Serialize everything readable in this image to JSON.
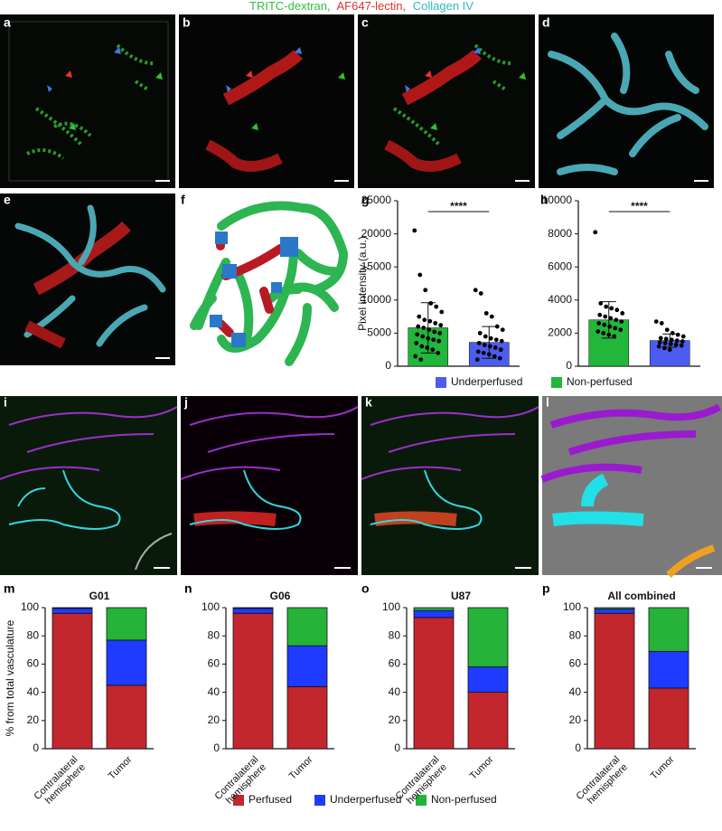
{
  "header": [
    "TRITC-dextran,",
    "AF647-lectin,",
    "Collagen IV"
  ],
  "panel_labels": [
    "a",
    "b",
    "c",
    "d",
    "e",
    "f",
    "g",
    "h",
    "i",
    "j",
    "k",
    "l",
    "m",
    "n",
    "o",
    "p"
  ],
  "chart_data": [
    {
      "type": "bar",
      "ylabel": "Pixel intensity (a.u.)",
      "ylim": [
        0,
        25000
      ],
      "yticks": [
        0,
        5000,
        10000,
        15000,
        20000,
        25000
      ],
      "significance": "****",
      "series": [
        {
          "name": "Non-perfused",
          "color": "#22b63a",
          "values": [
            5800
          ],
          "errors": [
            3800
          ],
          "points": [
            20500,
            13800,
            11500,
            9500,
            9000,
            8200,
            7500,
            7000,
            6800,
            6500,
            6200,
            6000,
            5800,
            5500,
            5200,
            5000,
            4800,
            4500,
            4200,
            4000,
            3800,
            3500,
            3000,
            2800,
            2500,
            2000,
            1500,
            1000
          ]
        },
        {
          "name": "Underperfused",
          "color": "#4d5cf0",
          "values": [
            3600
          ],
          "errors": [
            2400
          ],
          "points": [
            11500,
            11000,
            8000,
            7500,
            6000,
            5500,
            5000,
            4500,
            4200,
            4000,
            3800,
            3500,
            3200,
            3000,
            2800,
            2500,
            2200,
            2000,
            1800,
            1500,
            1200,
            1000
          ]
        }
      ]
    },
    {
      "type": "bar",
      "ylim": [
        0,
        10000
      ],
      "yticks": [
        0,
        2000,
        4000,
        6000,
        8000,
        10000
      ],
      "significance": "****",
      "series": [
        {
          "color": "#22b63a",
          "values": [
            2800
          ],
          "errors": [
            1100
          ],
          "points": [
            8100,
            3800,
            3600,
            3500,
            3400,
            3200,
            3100,
            3000,
            2900,
            2800,
            2700,
            2600,
            2500,
            2400,
            2300,
            2200,
            2100,
            2000,
            1900,
            1800
          ]
        },
        {
          "color": "#4d5cf0",
          "values": [
            1550
          ],
          "errors": [
            400
          ],
          "points": [
            2700,
            2600,
            2200,
            2000,
            1900,
            1800,
            1700,
            1650,
            1600,
            1550,
            1500,
            1450,
            1400,
            1350,
            1300,
            1250,
            1200,
            1100,
            1000
          ]
        }
      ]
    },
    {
      "type": "stacked_bar",
      "title": "G01",
      "ylabel": "% from total vasculature",
      "categories": [
        "Contralateral hemisphere",
        "Tumor"
      ],
      "ylim": [
        0,
        100
      ],
      "yticks": [
        0,
        20,
        40,
        60,
        80,
        100
      ],
      "series": [
        {
          "name": "Perfused",
          "color": "#c1272d",
          "values": [
            96,
            45
          ]
        },
        {
          "name": "Underperfused",
          "color": "#1f3bff",
          "values": [
            3.5,
            32
          ]
        },
        {
          "name": "Non-perfused",
          "color": "#26b33a",
          "values": [
            0.5,
            23
          ]
        }
      ]
    },
    {
      "type": "stacked_bar",
      "title": "G06",
      "categories": [
        "Contralateral hemisphere",
        "Tumor"
      ],
      "ylim": [
        0,
        100
      ],
      "yticks": [
        0,
        20,
        40,
        60,
        80,
        100
      ],
      "series": [
        {
          "color": "#c1272d",
          "values": [
            96,
            44
          ]
        },
        {
          "color": "#1f3bff",
          "values": [
            3.5,
            29
          ]
        },
        {
          "color": "#26b33a",
          "values": [
            0.5,
            27
          ]
        }
      ]
    },
    {
      "type": "stacked_bar",
      "title": "U87",
      "categories": [
        "Contralateral hemisphere",
        "Tumor"
      ],
      "ylim": [
        0,
        100
      ],
      "yticks": [
        0,
        20,
        40,
        60,
        80,
        100
      ],
      "series": [
        {
          "color": "#c1272d",
          "values": [
            93,
            40
          ]
        },
        {
          "color": "#1f3bff",
          "values": [
            5,
            18
          ]
        },
        {
          "color": "#26b33a",
          "values": [
            2,
            42
          ]
        }
      ]
    },
    {
      "type": "stacked_bar",
      "title": "All combined",
      "categories": [
        "Contralateral hemisphere",
        "Tumor"
      ],
      "ylim": [
        0,
        100
      ],
      "yticks": [
        0,
        20,
        40,
        60,
        80,
        100
      ],
      "series": [
        {
          "color": "#c1272d",
          "values": [
            96,
            43
          ]
        },
        {
          "color": "#1f3bff",
          "values": [
            3,
            26
          ]
        },
        {
          "color": "#26b33a",
          "values": [
            1,
            31
          ]
        }
      ]
    }
  ]
}
